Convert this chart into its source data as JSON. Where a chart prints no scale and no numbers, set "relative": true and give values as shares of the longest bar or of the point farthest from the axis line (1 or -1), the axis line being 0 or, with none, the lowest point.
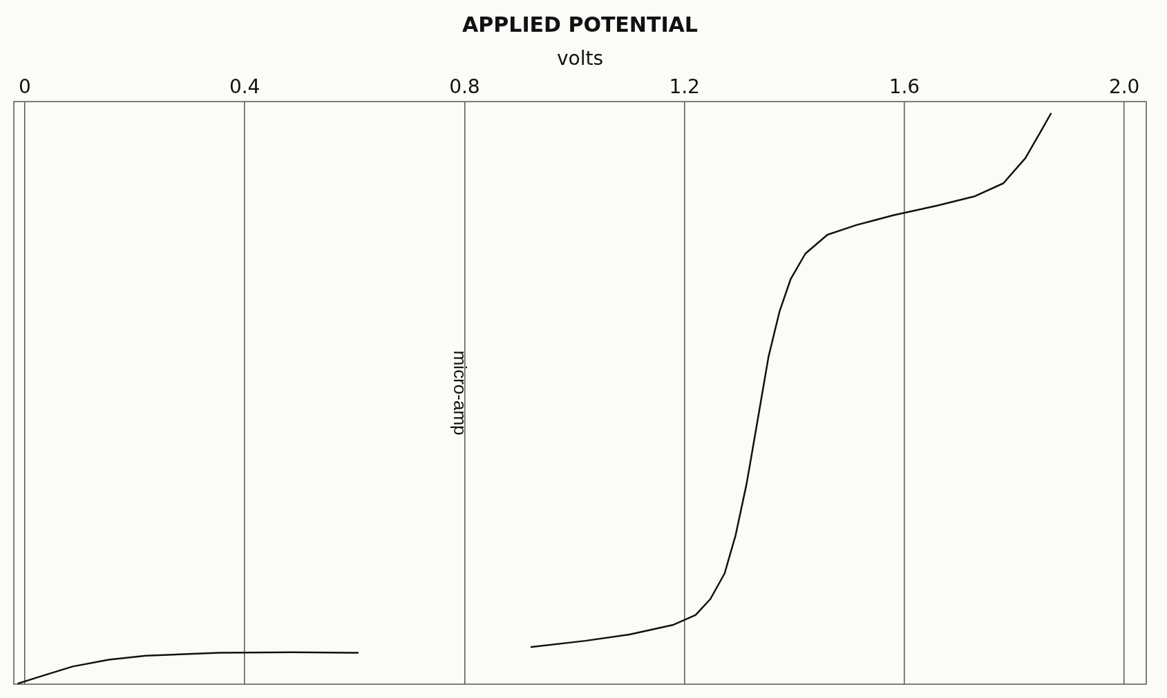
{
  "chart_data": {
    "type": "line",
    "title": "APPLIED POTENTIAL",
    "xlabel": "volts",
    "ylabel": "micro-amp",
    "relative": true,
    "grid": "x",
    "legend": false,
    "marker": "none",
    "line_style": "solid",
    "xlim": [
      -0.02,
      2.04
    ],
    "xticks": [
      0,
      0.4,
      0.8,
      1.2,
      1.6,
      {
        "value": 2,
        "label": "2.0"
      }
    ],
    "x": [
      -0.013,
      0.033,
      0.087,
      0.153,
      0.22,
      0.353,
      0.487,
      0.607,
      0.75,
      0.92,
      1.02,
      1.1,
      1.18,
      1.22,
      1.247,
      1.273,
      1.293,
      1.313,
      1.333,
      1.353,
      1.373,
      1.393,
      1.42,
      1.46,
      1.513,
      1.58,
      1.66,
      1.727,
      1.78,
      1.82,
      1.847,
      1.867
    ],
    "series": [
      {
        "color": "#111111",
        "values": [
          0.001,
          0.015,
          0.031,
          0.043,
          0.05,
          0.055,
          0.056,
          0.055,
          null,
          0.065,
          0.076,
          0.087,
          0.104,
          0.121,
          0.149,
          0.194,
          0.261,
          0.351,
          0.462,
          0.574,
          0.653,
          0.709,
          0.754,
          0.787,
          0.804,
          0.821,
          0.838,
          0.854,
          0.877,
          0.921,
          0.966,
          1.0
        ]
      }
    ]
  }
}
